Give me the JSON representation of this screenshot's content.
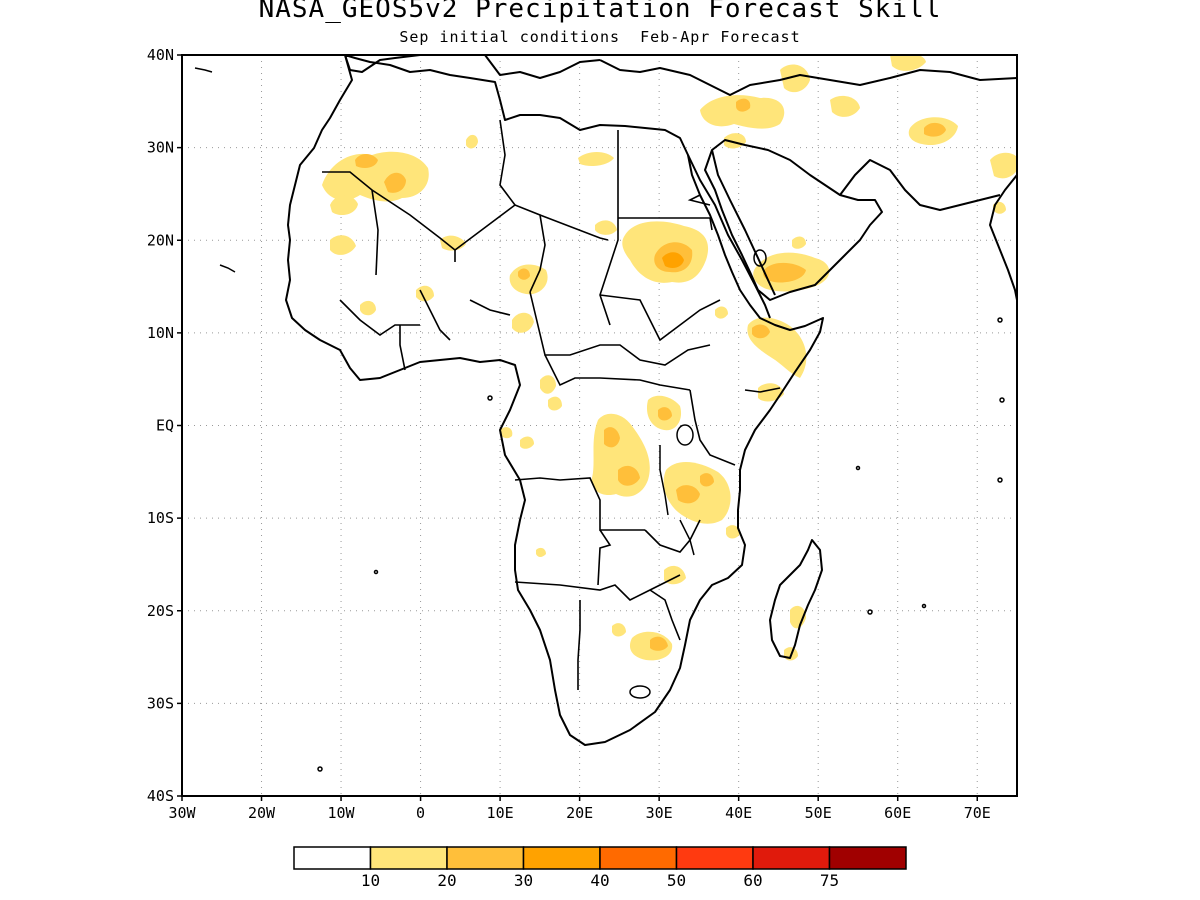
{
  "title": "NASA_GEOS5v2 Precipitation Forecast Skill",
  "subtitle": "Sep initial conditions  Feb-Apr Forecast",
  "map": {
    "lon_range": [
      -30,
      75
    ],
    "lat_range": [
      -40,
      40
    ],
    "gridlines": true,
    "lat_labels": [
      "40N",
      "30N",
      "20N",
      "10N",
      "EQ",
      "10S",
      "20S",
      "30S",
      "40S"
    ],
    "lon_labels": [
      "30W",
      "20W",
      "10W",
      "0",
      "10E",
      "20E",
      "30E",
      "40E",
      "50E",
      "60E",
      "70E"
    ]
  },
  "colorbar": {
    "colors": [
      "#ffffff",
      "#ffe57a",
      "#ffbf3a",
      "#ffa200",
      "#ff6a00",
      "#ff3a10",
      "#e01a0c",
      "#a00000"
    ],
    "labels": [
      "10",
      "20",
      "30",
      "40",
      "50",
      "60",
      "75"
    ]
  }
}
